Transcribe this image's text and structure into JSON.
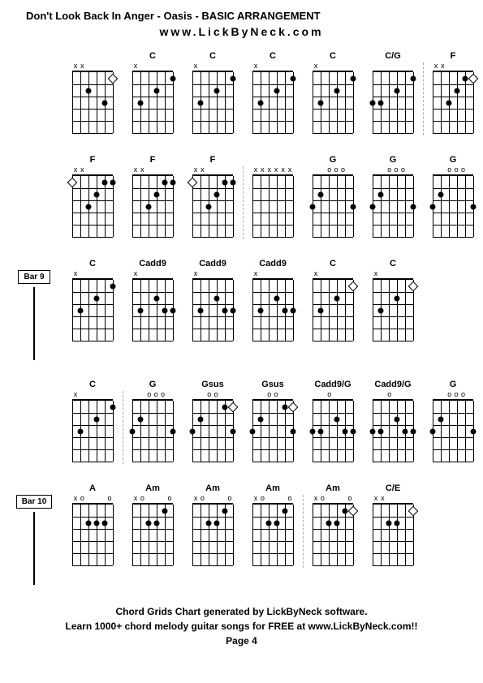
{
  "title": "Don't Look Back In Anger - Oasis - BASIC ARRANGEMENT",
  "subtitle": "www.LickByNeck.com",
  "footer_line1": "Chord Grids Chart generated by LickByNeck software.",
  "footer_line2": "Learn 1000+ chord melody guitar songs for FREE at www.LickByNeck.com!!",
  "page": "Page 4",
  "diagram": {
    "strings": 6,
    "frets": 5,
    "width": 50,
    "height": 75,
    "dot_color": "#000000",
    "line_color": "#000000"
  },
  "rows": [
    {
      "bar_label": null,
      "chords": [
        {
          "name": "",
          "nut": [
            "x",
            "x",
            "",
            "",
            "",
            ""
          ],
          "dots": [
            {
              "s": 2,
              "f": 2
            },
            {
              "s": 4,
              "f": 3
            }
          ],
          "opens": [
            {
              "s": 5,
              "f": 1,
              "type": "open"
            }
          ]
        },
        {
          "name": "C",
          "nut": [
            "x",
            "",
            "",
            "",
            "",
            ""
          ],
          "dots": [
            {
              "s": 1,
              "f": 3
            },
            {
              "s": 3,
              "f": 2
            },
            {
              "s": 5,
              "f": 1
            }
          ],
          "opens": []
        },
        {
          "name": "C",
          "nut": [
            "x",
            "",
            "",
            "",
            "",
            ""
          ],
          "dots": [
            {
              "s": 1,
              "f": 3
            },
            {
              "s": 3,
              "f": 2
            },
            {
              "s": 5,
              "f": 1
            }
          ],
          "opens": []
        },
        {
          "name": "C",
          "nut": [
            "x",
            "",
            "",
            "",
            "",
            ""
          ],
          "dots": [
            {
              "s": 1,
              "f": 3
            },
            {
              "s": 3,
              "f": 2
            },
            {
              "s": 5,
              "f": 1
            }
          ],
          "opens": []
        },
        {
          "name": "C",
          "nut": [
            "x",
            "",
            "",
            "",
            "",
            ""
          ],
          "dots": [
            {
              "s": 1,
              "f": 3
            },
            {
              "s": 3,
              "f": 2
            },
            {
              "s": 5,
              "f": 1
            }
          ],
          "opens": []
        },
        {
          "name": "C/G",
          "nut": [
            "",
            "",
            "",
            "",
            "",
            ""
          ],
          "dots": [
            {
              "s": 0,
              "f": 3
            },
            {
              "s": 1,
              "f": 3
            },
            {
              "s": 3,
              "f": 2
            },
            {
              "s": 5,
              "f": 1
            }
          ],
          "opens": []
        },
        {
          "name": "F",
          "nut": [
            "x",
            "x",
            "",
            "",
            "",
            ""
          ],
          "dots": [
            {
              "s": 2,
              "f": 3
            },
            {
              "s": 3,
              "f": 2
            },
            {
              "s": 4,
              "f": 1
            },
            {
              "s": 5,
              "f": 1
            }
          ],
          "opens": [
            {
              "s": 5,
              "f": 1,
              "type": "open"
            }
          ]
        }
      ],
      "dividers": [
        6
      ]
    },
    {
      "bar_label": null,
      "chords": [
        {
          "name": "F",
          "nut": [
            "x",
            "x",
            "",
            "",
            "",
            ""
          ],
          "dots": [
            {
              "s": 2,
              "f": 3
            },
            {
              "s": 3,
              "f": 2
            },
            {
              "s": 4,
              "f": 1
            },
            {
              "s": 5,
              "f": 1
            }
          ],
          "opens": [
            {
              "s": 0,
              "f": 1,
              "type": "open"
            }
          ]
        },
        {
          "name": "F",
          "nut": [
            "x",
            "x",
            "",
            "",
            "",
            ""
          ],
          "dots": [
            {
              "s": 2,
              "f": 3
            },
            {
              "s": 3,
              "f": 2
            },
            {
              "s": 4,
              "f": 1
            },
            {
              "s": 5,
              "f": 1
            }
          ],
          "opens": []
        },
        {
          "name": "F",
          "nut": [
            "x",
            "x",
            "",
            "",
            "",
            ""
          ],
          "dots": [
            {
              "s": 2,
              "f": 3
            },
            {
              "s": 3,
              "f": 2
            },
            {
              "s": 4,
              "f": 1
            },
            {
              "s": 5,
              "f": 1
            }
          ],
          "opens": [
            {
              "s": 0,
              "f": 1,
              "type": "open"
            }
          ]
        },
        {
          "name": "",
          "nut": [
            "x",
            "x",
            "x",
            "x",
            "x",
            "x"
          ],
          "dots": [],
          "opens": []
        },
        {
          "name": "G",
          "nut": [
            "",
            "",
            "o",
            "o",
            "o",
            ""
          ],
          "dots": [
            {
              "s": 0,
              "f": 3
            },
            {
              "s": 1,
              "f": 2
            },
            {
              "s": 5,
              "f": 3
            }
          ],
          "opens": []
        },
        {
          "name": "G",
          "nut": [
            "",
            "",
            "o",
            "o",
            "o",
            ""
          ],
          "dots": [
            {
              "s": 0,
              "f": 3
            },
            {
              "s": 1,
              "f": 2
            },
            {
              "s": 5,
              "f": 3
            }
          ],
          "opens": []
        },
        {
          "name": "G",
          "nut": [
            "",
            "",
            "o",
            "o",
            "o",
            ""
          ],
          "dots": [
            {
              "s": 0,
              "f": 3
            },
            {
              "s": 1,
              "f": 2
            },
            {
              "s": 5,
              "f": 3
            }
          ],
          "opens": []
        }
      ],
      "dividers": [
        3
      ]
    },
    {
      "bar_label": "Bar 9",
      "chords": [
        {
          "name": "C",
          "nut": [
            "x",
            "",
            "",
            "",
            "",
            ""
          ],
          "dots": [
            {
              "s": 1,
              "f": 3
            },
            {
              "s": 3,
              "f": 2
            },
            {
              "s": 5,
              "f": 1
            }
          ],
          "opens": []
        },
        {
          "name": "Cadd9",
          "nut": [
            "x",
            "",
            "",
            "",
            "",
            ""
          ],
          "dots": [
            {
              "s": 1,
              "f": 3
            },
            {
              "s": 3,
              "f": 2
            },
            {
              "s": 4,
              "f": 3
            },
            {
              "s": 5,
              "f": 3
            }
          ],
          "opens": []
        },
        {
          "name": "Cadd9",
          "nut": [
            "x",
            "",
            "",
            "",
            "",
            ""
          ],
          "dots": [
            {
              "s": 1,
              "f": 3
            },
            {
              "s": 3,
              "f": 2
            },
            {
              "s": 4,
              "f": 3
            },
            {
              "s": 5,
              "f": 3
            }
          ],
          "opens": []
        },
        {
          "name": "Cadd9",
          "nut": [
            "x",
            "",
            "",
            "",
            "",
            ""
          ],
          "dots": [
            {
              "s": 1,
              "f": 3
            },
            {
              "s": 3,
              "f": 2
            },
            {
              "s": 4,
              "f": 3
            },
            {
              "s": 5,
              "f": 3
            }
          ],
          "opens": []
        },
        {
          "name": "C",
          "nut": [
            "x",
            "",
            "",
            "",
            "",
            ""
          ],
          "dots": [
            {
              "s": 1,
              "f": 3
            },
            {
              "s": 3,
              "f": 2
            },
            {
              "s": 5,
              "f": 1
            }
          ],
          "opens": [
            {
              "s": 5,
              "f": 1,
              "type": "open"
            }
          ]
        },
        {
          "name": "C",
          "nut": [
            "x",
            "",
            "",
            "",
            "",
            ""
          ],
          "dots": [
            {
              "s": 1,
              "f": 3
            },
            {
              "s": 3,
              "f": 2
            },
            {
              "s": 5,
              "f": 1
            }
          ],
          "opens": [
            {
              "s": 5,
              "f": 1,
              "type": "open"
            }
          ]
        }
      ],
      "dividers": []
    },
    {
      "bar_label": null,
      "chords": [
        {
          "name": "C",
          "nut": [
            "x",
            "",
            "",
            "",
            "",
            ""
          ],
          "dots": [
            {
              "s": 1,
              "f": 3
            },
            {
              "s": 3,
              "f": 2
            },
            {
              "s": 5,
              "f": 1
            }
          ],
          "opens": []
        },
        {
          "name": "G",
          "nut": [
            "",
            "",
            "o",
            "o",
            "o",
            ""
          ],
          "dots": [
            {
              "s": 0,
              "f": 3
            },
            {
              "s": 1,
              "f": 2
            },
            {
              "s": 5,
              "f": 3
            }
          ],
          "opens": []
        },
        {
          "name": "Gsus",
          "nut": [
            "",
            "",
            "o",
            "o",
            "",
            ""
          ],
          "dots": [
            {
              "s": 0,
              "f": 3
            },
            {
              "s": 1,
              "f": 2
            },
            {
              "s": 4,
              "f": 1
            },
            {
              "s": 5,
              "f": 3
            }
          ],
          "opens": [
            {
              "s": 5,
              "f": 1,
              "type": "open"
            }
          ]
        },
        {
          "name": "Gsus",
          "nut": [
            "",
            "",
            "o",
            "o",
            "",
            ""
          ],
          "dots": [
            {
              "s": 0,
              "f": 3
            },
            {
              "s": 1,
              "f": 2
            },
            {
              "s": 4,
              "f": 1
            },
            {
              "s": 5,
              "f": 3
            }
          ],
          "opens": [
            {
              "s": 5,
              "f": 1,
              "type": "open"
            }
          ]
        },
        {
          "name": "Cadd9/G",
          "nut": [
            "",
            "",
            "o",
            "",
            "",
            ""
          ],
          "dots": [
            {
              "s": 0,
              "f": 3
            },
            {
              "s": 1,
              "f": 3
            },
            {
              "s": 3,
              "f": 2
            },
            {
              "s": 4,
              "f": 3
            },
            {
              "s": 5,
              "f": 3
            }
          ],
          "opens": []
        },
        {
          "name": "Cadd9/G",
          "nut": [
            "",
            "",
            "o",
            "",
            "",
            ""
          ],
          "dots": [
            {
              "s": 0,
              "f": 3
            },
            {
              "s": 1,
              "f": 3
            },
            {
              "s": 3,
              "f": 2
            },
            {
              "s": 4,
              "f": 3
            },
            {
              "s": 5,
              "f": 3
            }
          ],
          "opens": []
        },
        {
          "name": "G",
          "nut": [
            "",
            "",
            "o",
            "o",
            "o",
            ""
          ],
          "dots": [
            {
              "s": 0,
              "f": 3
            },
            {
              "s": 1,
              "f": 2
            },
            {
              "s": 5,
              "f": 3
            }
          ],
          "opens": []
        }
      ],
      "dividers": [
        1
      ]
    },
    {
      "bar_label": "Bar 10",
      "chords": [
        {
          "name": "A",
          "nut": [
            "x",
            "o",
            "",
            "",
            "",
            "o"
          ],
          "dots": [
            {
              "s": 2,
              "f": 2
            },
            {
              "s": 3,
              "f": 2
            },
            {
              "s": 4,
              "f": 2
            }
          ],
          "opens": []
        },
        {
          "name": "Am",
          "nut": [
            "x",
            "o",
            "",
            "",
            "",
            "o"
          ],
          "dots": [
            {
              "s": 2,
              "f": 2
            },
            {
              "s": 3,
              "f": 2
            },
            {
              "s": 4,
              "f": 1
            }
          ],
          "opens": []
        },
        {
          "name": "Am",
          "nut": [
            "x",
            "o",
            "",
            "",
            "",
            "o"
          ],
          "dots": [
            {
              "s": 2,
              "f": 2
            },
            {
              "s": 3,
              "f": 2
            },
            {
              "s": 4,
              "f": 1
            }
          ],
          "opens": []
        },
        {
          "name": "Am",
          "nut": [
            "x",
            "o",
            "",
            "",
            "",
            "o"
          ],
          "dots": [
            {
              "s": 2,
              "f": 2
            },
            {
              "s": 3,
              "f": 2
            },
            {
              "s": 4,
              "f": 1
            }
          ],
          "opens": []
        },
        {
          "name": "Am",
          "nut": [
            "x",
            "o",
            "",
            "",
            "",
            "o"
          ],
          "dots": [
            {
              "s": 2,
              "f": 2
            },
            {
              "s": 3,
              "f": 2
            },
            {
              "s": 4,
              "f": 1
            }
          ],
          "opens": [
            {
              "s": 5,
              "f": 1,
              "type": "open"
            }
          ]
        },
        {
          "name": "C/E",
          "nut": [
            "x",
            "x",
            "",
            "",
            "",
            ""
          ],
          "dots": [
            {
              "s": 2,
              "f": 2
            },
            {
              "s": 3,
              "f": 2
            },
            {
              "s": 5,
              "f": 1
            }
          ],
          "opens": [
            {
              "s": 5,
              "f": 1,
              "type": "open"
            }
          ]
        }
      ],
      "dividers": [
        4
      ]
    }
  ]
}
